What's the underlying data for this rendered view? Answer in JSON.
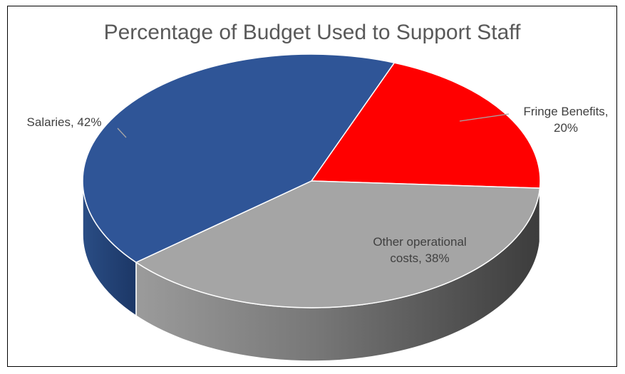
{
  "chart_data": {
    "type": "pie",
    "title": "Percentage of Budget Used to Support Staff",
    "style": "3d",
    "legend": "none",
    "slices": [
      {
        "label": "Salaries",
        "value": 42,
        "display": "Salaries, 42%",
        "color": "#2F5597"
      },
      {
        "label": "Fringe Benefits",
        "value": 20,
        "display_lines": [
          "Fringe Benefits,",
          "20%"
        ],
        "color": "#FF0000"
      },
      {
        "label": "Other operational costs",
        "value": 38,
        "display_lines": [
          "Other operational",
          "costs, 38%"
        ],
        "color": "#A5A5A5"
      }
    ]
  }
}
